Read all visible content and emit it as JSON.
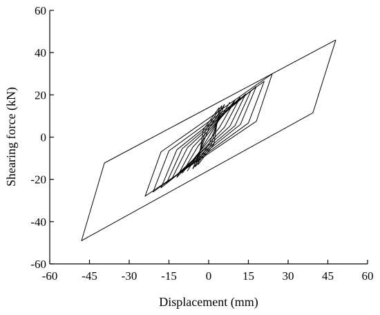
{
  "chart_data": {
    "type": "line",
    "title": "",
    "xlabel": "Displacement (mm)",
    "ylabel": "Shearing force (kN)",
    "xlim": [
      -60,
      60
    ],
    "ylim": [
      -60,
      60
    ],
    "xticks": [
      -60,
      -45,
      -30,
      -15,
      0,
      15,
      30,
      45,
      60
    ],
    "yticks": [
      -60,
      -40,
      -20,
      0,
      20,
      40,
      60
    ],
    "xtick_labels": [
      "-60",
      "-45",
      "-30",
      "-15",
      "0",
      "15",
      "30",
      "45",
      "60"
    ],
    "ytick_labels": [
      "-60",
      "-40",
      "-20",
      "0",
      "20",
      "40",
      "60"
    ],
    "grid": false,
    "legend": "none",
    "series": [
      {
        "values": "hysteresis loops (force vs displacement)",
        "loops": [
          {
            "amp": 4,
            "fmax": 14,
            "fmin": -13
          },
          {
            "amp": 5,
            "fmax": 15,
            "fmin": -14
          },
          {
            "amp": 6,
            "fmax": 15.5,
            "fmin": -15
          },
          {
            "amp": 8,
            "fmax": 16.5,
            "fmin": -16
          },
          {
            "amp": 10,
            "fmax": 17.5,
            "fmin": -17
          },
          {
            "amp": 12,
            "fmax": 19,
            "fmin": -19
          },
          {
            "amp": 14,
            "fmax": 20.5,
            "fmin": -20
          },
          {
            "amp": 16,
            "fmax": 22,
            "fmin": -22
          },
          {
            "amp": 18,
            "fmax": 24,
            "fmin": -24
          },
          {
            "amp": 21,
            "fmax": 26.5,
            "fmin": -26
          },
          {
            "amp": 24,
            "fmax": 30,
            "fmin": -28
          },
          {
            "amp": 48,
            "fmax": 46,
            "fmin": -49
          }
        ]
      }
    ]
  }
}
